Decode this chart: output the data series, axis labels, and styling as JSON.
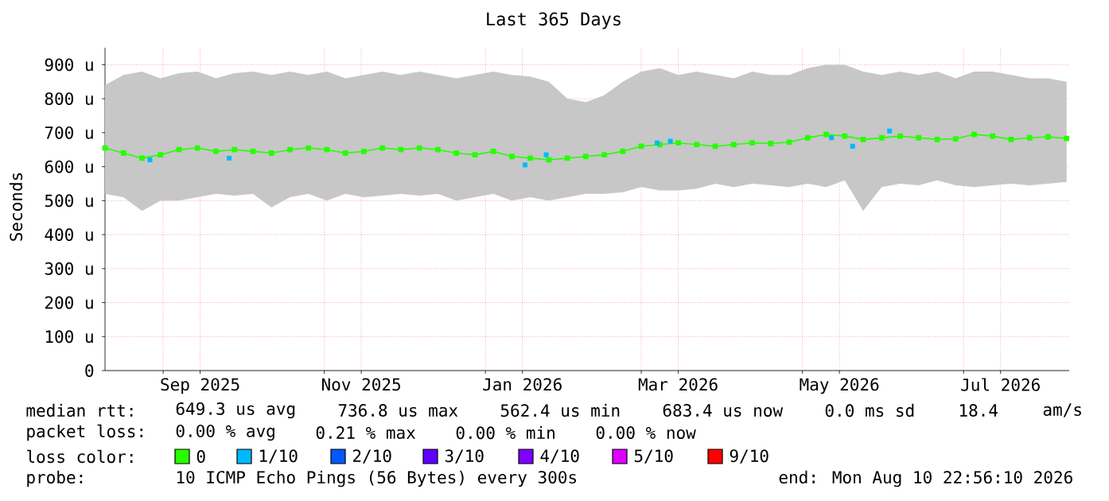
{
  "chart_data": {
    "type": "line",
    "title": "Last 365 Days",
    "ylabel": "Seconds",
    "xlim": [
      "2025-08-10",
      "2026-08-10"
    ],
    "xticks": [
      {
        "value": "2025-09-01",
        "label": null
      },
      {
        "value": "2025-09-15",
        "label": "Sep 2025"
      },
      {
        "value": "2025-11-01",
        "label": null
      },
      {
        "value": "2025-11-15",
        "label": "Nov 2025"
      },
      {
        "value": "2026-01-01",
        "label": null
      },
      {
        "value": "2026-01-15",
        "label": "Jan 2026"
      },
      {
        "value": "2026-03-01",
        "label": null
      },
      {
        "value": "2026-03-15",
        "label": "Mar 2026"
      },
      {
        "value": "2026-05-01",
        "label": null
      },
      {
        "value": "2026-05-15",
        "label": "May 2026"
      },
      {
        "value": "2026-07-01",
        "label": null
      },
      {
        "value": "2026-07-15",
        "label": "Jul 2026"
      }
    ],
    "ylim": [
      0,
      950
    ],
    "yticks": [
      0,
      {
        "value": 100,
        "label": "100 u"
      },
      {
        "value": 200,
        "label": "200 u"
      },
      {
        "value": 300,
        "label": "300 u"
      },
      {
        "value": 400,
        "label": "400 u"
      },
      {
        "value": 500,
        "label": "500 u"
      },
      {
        "value": 600,
        "label": "600 u"
      },
      {
        "value": 700,
        "label": "700 u"
      },
      {
        "value": 800,
        "label": "800 u"
      },
      {
        "value": 900,
        "label": "900 u"
      }
    ],
    "grid": true,
    "marker": "square",
    "line_style": "solid",
    "legend": "bottom",
    "legend_title": "loss color:",
    "x": [
      "2025-08-10",
      "2025-08-17",
      "2025-08-24",
      "2025-08-31",
      "2025-09-07",
      "2025-09-14",
      "2025-09-21",
      "2025-09-28",
      "2025-10-05",
      "2025-10-12",
      "2025-10-19",
      "2025-10-26",
      "2025-11-02",
      "2025-11-09",
      "2025-11-16",
      "2025-11-23",
      "2025-11-30",
      "2025-12-07",
      "2025-12-14",
      "2025-12-21",
      "2025-12-28",
      "2026-01-04",
      "2026-01-11",
      "2026-01-18",
      "2026-01-25",
      "2026-02-01",
      "2026-02-08",
      "2026-02-15",
      "2026-02-22",
      "2026-03-01",
      "2026-03-08",
      "2026-03-15",
      "2026-03-22",
      "2026-03-29",
      "2026-04-05",
      "2026-04-12",
      "2026-04-19",
      "2026-04-26",
      "2026-05-03",
      "2026-05-10",
      "2026-05-17",
      "2026-05-24",
      "2026-05-31",
      "2026-06-07",
      "2026-06-14",
      "2026-06-21",
      "2026-06-28",
      "2026-07-05",
      "2026-07-12",
      "2026-07-19",
      "2026-07-26",
      "2026-08-02",
      "2026-08-09"
    ],
    "series": [
      {
        "name": "0",
        "color": "#26ff00",
        "values": [
          655,
          640,
          625,
          635,
          650,
          655,
          645,
          650,
          645,
          640,
          650,
          655,
          650,
          640,
          645,
          655,
          650,
          655,
          650,
          640,
          635,
          645,
          630,
          625,
          620,
          625,
          630,
          635,
          645,
          660,
          665,
          670,
          665,
          660,
          665,
          670,
          668,
          672,
          685,
          695,
          690,
          680,
          685,
          690,
          685,
          680,
          682,
          695,
          690,
          680,
          685,
          688,
          683
        ],
        "upper": [
          840,
          870,
          880,
          860,
          875,
          880,
          860,
          875,
          880,
          870,
          880,
          870,
          880,
          860,
          870,
          880,
          870,
          880,
          870,
          860,
          870,
          880,
          870,
          865,
          850,
          800,
          790,
          810,
          850,
          880,
          890,
          870,
          880,
          870,
          860,
          880,
          870,
          870,
          890,
          900,
          900,
          880,
          870,
          880,
          870,
          880,
          860,
          880,
          880,
          870,
          860,
          860,
          850
        ],
        "lower": [
          520,
          510,
          470,
          500,
          500,
          510,
          520,
          515,
          520,
          480,
          510,
          520,
          500,
          520,
          510,
          515,
          520,
          515,
          520,
          500,
          510,
          520,
          500,
          510,
          500,
          510,
          520,
          520,
          525,
          540,
          530,
          530,
          535,
          550,
          540,
          550,
          545,
          540,
          550,
          540,
          560,
          470,
          540,
          550,
          545,
          560,
          545,
          540,
          545,
          550,
          545,
          550,
          555
        ]
      },
      {
        "name": "1/10",
        "color": "#00b8ff",
        "type": "scatter",
        "x": [
          "2025-08-27",
          "2025-09-26",
          "2026-01-16",
          "2026-01-24",
          "2026-03-07",
          "2026-03-12",
          "2026-05-12",
          "2026-05-20",
          "2026-06-03"
        ],
        "values": [
          620,
          625,
          605,
          635,
          670,
          675,
          685,
          660,
          705
        ]
      },
      {
        "name": "2/10",
        "color": "#0059ff",
        "type": "scatter",
        "values": [
          null,
          null,
          null,
          null,
          null,
          null,
          null,
          null,
          null,
          null,
          null,
          null,
          null,
          null,
          null,
          null,
          null,
          null,
          null,
          null,
          null,
          null,
          null,
          null,
          null,
          null,
          null,
          null,
          null,
          null,
          null,
          null,
          null,
          null,
          null,
          null,
          null,
          null,
          null,
          null,
          null,
          null,
          null,
          null,
          null,
          null,
          null,
          null,
          null,
          null,
          null,
          null,
          null
        ]
      },
      {
        "name": "3/10",
        "color": "#5e00ff",
        "type": "scatter",
        "values": [
          null,
          null,
          null,
          null,
          null,
          null,
          null,
          null,
          null,
          null,
          null,
          null,
          null,
          null,
          null,
          null,
          null,
          null,
          null,
          null,
          null,
          null,
          null,
          null,
          null,
          null,
          null,
          null,
          null,
          null,
          null,
          null,
          null,
          null,
          null,
          null,
          null,
          null,
          null,
          null,
          null,
          null,
          null,
          null,
          null,
          null,
          null,
          null,
          null,
          null,
          null,
          null,
          null
        ]
      },
      {
        "name": "4/10",
        "color": "#7e00ff",
        "type": "scatter",
        "values": [
          null,
          null,
          null,
          null,
          null,
          null,
          null,
          null,
          null,
          null,
          null,
          null,
          null,
          null,
          null,
          null,
          null,
          null,
          null,
          null,
          null,
          null,
          null,
          null,
          null,
          null,
          null,
          null,
          null,
          null,
          null,
          null,
          null,
          null,
          null,
          null,
          null,
          null,
          null,
          null,
          null,
          null,
          null,
          null,
          null,
          null,
          null,
          null,
          null,
          null,
          null,
          null,
          null
        ]
      },
      {
        "name": "5/10",
        "color": "#dd00ff",
        "type": "scatter",
        "values": [
          null,
          null,
          null,
          null,
          null,
          null,
          null,
          null,
          null,
          null,
          null,
          null,
          null,
          null,
          null,
          null,
          null,
          null,
          null,
          null,
          null,
          null,
          null,
          null,
          null,
          null,
          null,
          null,
          null,
          null,
          null,
          null,
          null,
          null,
          null,
          null,
          null,
          null,
          null,
          null,
          null,
          null,
          null,
          null,
          null,
          null,
          null,
          null,
          null,
          null,
          null,
          null,
          null
        ]
      },
      {
        "name": "9/10",
        "color": "#ff0000",
        "type": "scatter",
        "values": [
          null,
          null,
          null,
          null,
          null,
          null,
          null,
          null,
          null,
          null,
          null,
          null,
          null,
          null,
          null,
          null,
          null,
          null,
          null,
          null,
          null,
          null,
          null,
          null,
          null,
          null,
          null,
          null,
          null,
          null,
          null,
          null,
          null,
          null,
          null,
          null,
          null,
          null,
          null,
          null,
          null,
          null,
          null,
          null,
          null,
          null,
          null,
          null,
          null,
          null,
          null,
          null,
          null
        ]
      }
    ],
    "annotations": [
      "median rtt:",
      "649.3 us avg",
      "736.8 us max",
      "562.4 us min",
      "683.4 us now",
      "0.0 ms sd",
      "18.4",
      "am/s",
      "packet loss:",
      "0.00 % avg",
      "0.21 % max",
      "0.00 % min",
      "0.00 % now",
      "probe:",
      "10 ICMP Echo Pings (56 Bytes) every 300s",
      "end: Mon Aug 10 22:56:10 2026"
    ]
  }
}
